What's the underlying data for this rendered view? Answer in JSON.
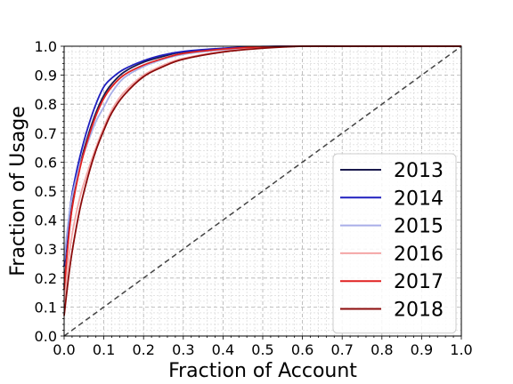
{
  "chart_data": {
    "type": "line",
    "title": "",
    "xlabel": "Fraction of Account",
    "ylabel": "Fraction of Usage",
    "xlim": [
      0.0,
      1.0
    ],
    "ylim": [
      0.0,
      1.0
    ],
    "xticks": [
      "0.0",
      "0.1",
      "0.2",
      "0.3",
      "0.4",
      "0.5",
      "0.6",
      "0.7",
      "0.8",
      "0.9",
      "1.0"
    ],
    "yticks": [
      "0.0",
      "0.1",
      "0.2",
      "0.3",
      "0.4",
      "0.5",
      "0.6",
      "0.7",
      "0.8",
      "0.9",
      "1.0"
    ],
    "grid": true,
    "legend_position": "lower-right",
    "series": [
      {
        "name": "2013",
        "color": "#1a1a4d",
        "x": [
          0,
          0.01,
          0.02,
          0.04,
          0.06,
          0.08,
          0.1,
          0.12,
          0.15,
          0.2,
          0.25,
          0.3,
          0.4,
          0.5,
          0.6,
          0.7,
          0.8,
          0.9,
          1.0
        ],
        "y": [
          0.17,
          0.33,
          0.45,
          0.59,
          0.69,
          0.77,
          0.83,
          0.87,
          0.91,
          0.945,
          0.965,
          0.98,
          0.99,
          0.998,
          1.0,
          1.0,
          1.0,
          1.0,
          1.0
        ]
      },
      {
        "name": "2014",
        "color": "#1f1fbf",
        "x": [
          0,
          0.01,
          0.02,
          0.04,
          0.06,
          0.08,
          0.1,
          0.12,
          0.15,
          0.2,
          0.25,
          0.3,
          0.4,
          0.5,
          0.6,
          0.7,
          0.8,
          0.9,
          1.0
        ],
        "y": [
          0.24,
          0.38,
          0.49,
          0.62,
          0.72,
          0.8,
          0.86,
          0.89,
          0.92,
          0.95,
          0.97,
          0.982,
          0.993,
          0.999,
          1.0,
          1.0,
          1.0,
          1.0,
          1.0
        ]
      },
      {
        "name": "2015",
        "color": "#a8aee8",
        "x": [
          0,
          0.01,
          0.02,
          0.04,
          0.06,
          0.08,
          0.1,
          0.12,
          0.15,
          0.2,
          0.25,
          0.3,
          0.4,
          0.5,
          0.6,
          0.7,
          0.8,
          0.9,
          1.0
        ],
        "y": [
          0.26,
          0.39,
          0.48,
          0.59,
          0.67,
          0.74,
          0.79,
          0.84,
          0.89,
          0.93,
          0.955,
          0.972,
          0.988,
          0.997,
          1.0,
          1.0,
          1.0,
          1.0,
          1.0
        ]
      },
      {
        "name": "2016",
        "color": "#f4a6a6",
        "x": [
          0,
          0.01,
          0.02,
          0.04,
          0.06,
          0.08,
          0.1,
          0.12,
          0.15,
          0.2,
          0.25,
          0.3,
          0.4,
          0.5,
          0.6,
          0.7,
          0.8,
          0.9,
          1.0
        ],
        "y": [
          0.12,
          0.25,
          0.35,
          0.48,
          0.57,
          0.65,
          0.72,
          0.78,
          0.84,
          0.9,
          0.935,
          0.958,
          0.982,
          0.995,
          1.0,
          1.0,
          1.0,
          1.0,
          1.0
        ]
      },
      {
        "name": "2017",
        "color": "#e02020",
        "x": [
          0,
          0.01,
          0.02,
          0.04,
          0.06,
          0.08,
          0.1,
          0.12,
          0.15,
          0.2,
          0.25,
          0.3,
          0.4,
          0.5,
          0.6,
          0.7,
          0.8,
          0.9,
          1.0
        ],
        "y": [
          0.16,
          0.32,
          0.44,
          0.58,
          0.68,
          0.76,
          0.82,
          0.86,
          0.9,
          0.935,
          0.958,
          0.975,
          0.99,
          0.998,
          1.0,
          1.0,
          1.0,
          1.0,
          1.0
        ]
      },
      {
        "name": "2018",
        "color": "#8b0a0a",
        "x": [
          0,
          0.01,
          0.02,
          0.04,
          0.06,
          0.08,
          0.1,
          0.12,
          0.15,
          0.2,
          0.25,
          0.3,
          0.4,
          0.5,
          0.6,
          0.7,
          0.8,
          0.9,
          1.0
        ],
        "y": [
          0.07,
          0.19,
          0.29,
          0.44,
          0.55,
          0.64,
          0.71,
          0.77,
          0.83,
          0.895,
          0.93,
          0.955,
          0.98,
          0.993,
          1.0,
          1.0,
          1.0,
          1.0,
          1.0
        ]
      }
    ],
    "reference_line": {
      "name": "equality",
      "x": [
        0,
        1
      ],
      "y": [
        0,
        1
      ],
      "color": "#444444",
      "style": "dashed"
    }
  }
}
